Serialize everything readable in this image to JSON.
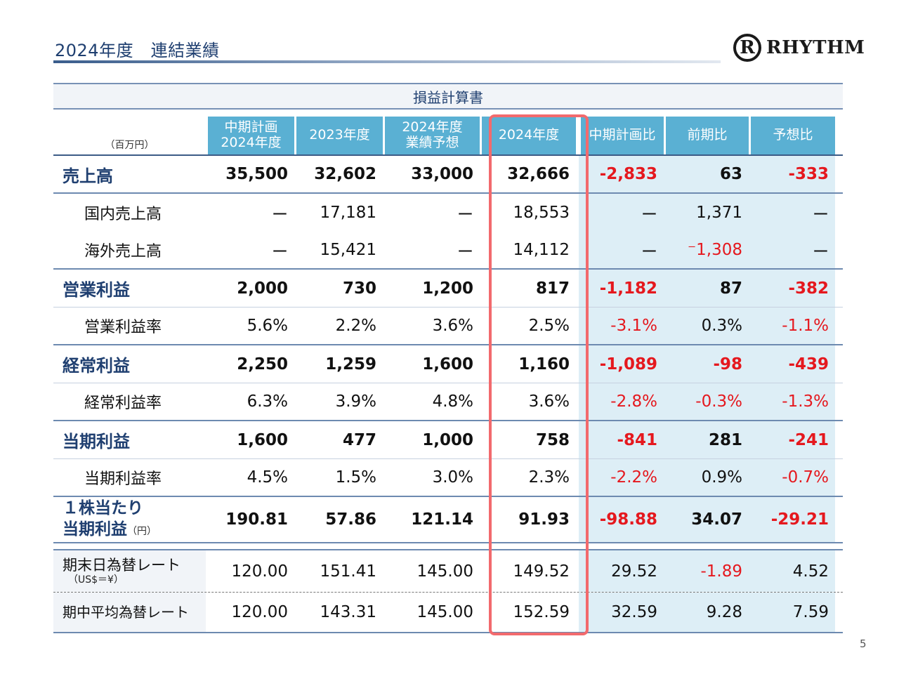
{
  "title": "2024年度　連結業績",
  "logo": {
    "mark": "R",
    "text": "RHYTHM"
  },
  "page_number": "5",
  "table": {
    "caption": "損益計算書",
    "unit_label": "（百万円）",
    "columns": [
      "中期計画\n2024年度",
      "2023年度",
      "2024年度\n業績予想",
      "2024年度",
      "中期計画比",
      "前期比",
      "予想比"
    ],
    "rows": [
      {
        "label": "売上高",
        "values": [
          "35,500",
          "32,602",
          "33,000",
          "32,666",
          "-2,833",
          "63",
          "-333"
        ]
      },
      {
        "label": "国内売上高",
        "values": [
          "ー",
          "17,181",
          "ー",
          "18,553",
          "ー",
          "1,371",
          "ー"
        ]
      },
      {
        "label": "海外売上高",
        "values": [
          "ー",
          "15,421",
          "ー",
          "14,112",
          "ー",
          "⁻1,308",
          "ー"
        ]
      },
      {
        "label": "営業利益",
        "values": [
          "2,000",
          "730",
          "1,200",
          "817",
          "-1,182",
          "87",
          "-382"
        ]
      },
      {
        "label": "営業利益率",
        "values": [
          "5.6%",
          "2.2%",
          "3.6%",
          "2.5%",
          "-3.1%",
          "0.3%",
          "-1.1%"
        ]
      },
      {
        "label": "経常利益",
        "values": [
          "2,250",
          "1,259",
          "1,600",
          "1,160",
          "-1,089",
          "-98",
          "-439"
        ]
      },
      {
        "label": "経常利益率",
        "values": [
          "6.3%",
          "3.9%",
          "4.8%",
          "3.6%",
          "-2.8%",
          "-0.3%",
          "-1.3%"
        ]
      },
      {
        "label": "当期利益",
        "values": [
          "1,600",
          "477",
          "1,000",
          "758",
          "-841",
          "281",
          "-241"
        ]
      },
      {
        "label": "当期利益率",
        "values": [
          "4.5%",
          "1.5%",
          "3.0%",
          "2.3%",
          "-2.2%",
          "0.9%",
          "-0.7%"
        ]
      },
      {
        "label_line1": "１株当たり",
        "label_line2": "当期利益",
        "label_unit": "（円）",
        "values": [
          "190.81",
          "57.86",
          "121.14",
          "91.93",
          "-98.88",
          "34.07",
          "-29.21"
        ]
      },
      {
        "label": "期末日為替レート",
        "label_unit": "（US$＝¥）",
        "values": [
          "120.00",
          "151.41",
          "145.00",
          "149.52",
          "29.52",
          "-1.89",
          "4.52"
        ]
      },
      {
        "label": "期中平均為替レート",
        "values": [
          "120.00",
          "143.31",
          "145.00",
          "152.59",
          "32.59",
          "9.28",
          "7.59"
        ]
      }
    ]
  },
  "colors": {
    "header_blue": "#5ab0d3",
    "navy": "#1f3f70",
    "negative_red": "#e5181e",
    "highlight_box": "#f26a6d",
    "variance_bg": "#ddeef6"
  }
}
